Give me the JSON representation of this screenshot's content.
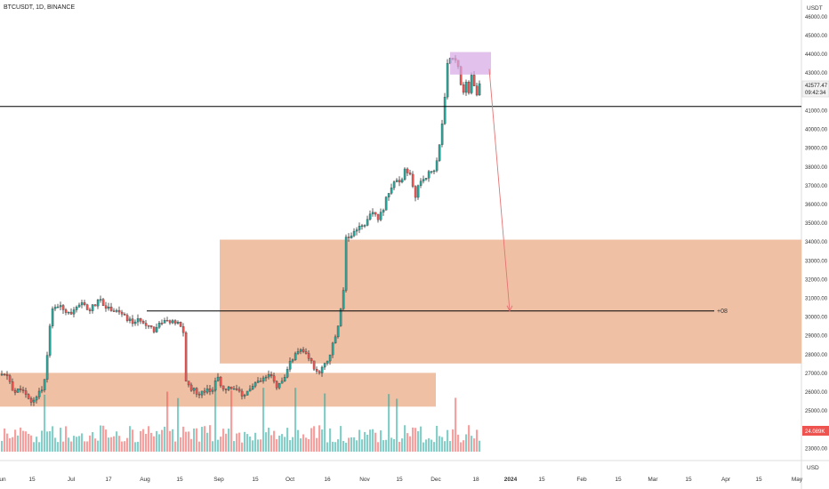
{
  "header": {
    "symbol": "BTCUSDT, 1D, BINANCE",
    "currency_top": "USDT",
    "currency_bottom": "USD"
  },
  "price_tags": {
    "last_price": "42577.47",
    "countdown": "09:42:34",
    "volume": "24.089K",
    "volume_color": "#ef5350"
  },
  "colors": {
    "up": "#26a69a",
    "down": "#ef5350",
    "zone": "#f0c0a5",
    "box": "#d5a8e6",
    "arrow": "#e57373",
    "line": "#000000"
  },
  "annotation": {
    "level_label": "+08"
  },
  "chart_data": {
    "type": "candlestick",
    "y_ticks": [
      "23000.00",
      "24000.00",
      "25000.00",
      "26000.00",
      "27000.00",
      "28000.00",
      "29000.00",
      "30000.00",
      "31000.00",
      "32000.00",
      "33000.00",
      "34000.00",
      "35000.00",
      "36000.00",
      "37000.00",
      "38000.00",
      "39000.00",
      "40000.00",
      "41000.00",
      "42000.00",
      "43000.00",
      "44000.00",
      "45000.00",
      "46000.00"
    ],
    "y_range": [
      22800,
      46400
    ],
    "x_ticks": [
      "un",
      "15",
      "Jul",
      "17",
      "Aug",
      "15",
      "Sep",
      "15",
      "Oct",
      "16",
      "Nov",
      "15",
      "Dec",
      "18",
      "2024",
      "15",
      "Feb",
      "15",
      "Mar",
      "15",
      "Apr",
      "15",
      "May"
    ],
    "zones": [
      {
        "low": 27500,
        "high": 34100
      },
      {
        "low": 25200,
        "high": 27000
      }
    ],
    "horizontal_levels": [
      41200,
      30300
    ],
    "target_box": {
      "low": 42900,
      "high": 44100
    },
    "arrow": {
      "from": 43200,
      "to": 30300
    }
  }
}
